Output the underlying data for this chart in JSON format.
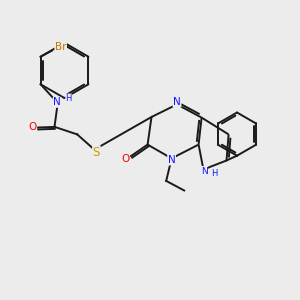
{
  "bg_color": "#ececec",
  "bond_color": "#1a1a1a",
  "bond_width": 1.4,
  "atom_colors": {
    "N": "#1414ff",
    "O": "#ff0000",
    "S": "#c8a000",
    "Br": "#c87800",
    "H": "#4080ff",
    "C": "#1a1a1a"
  },
  "font_size_atom": 7.5,
  "font_size_small": 6.0
}
